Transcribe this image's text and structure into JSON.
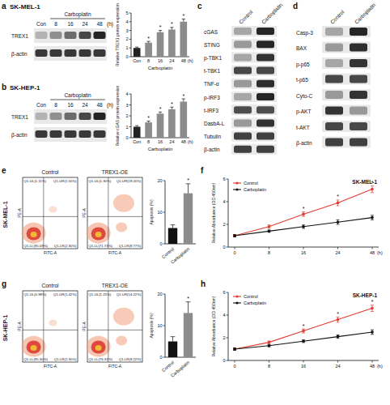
{
  "panel_labels": [
    "a",
    "b",
    "c",
    "d",
    "e",
    "f",
    "g",
    "h"
  ],
  "blots": [
    {
      "title": "SK-MEL-1",
      "group_label": "Carboplatin",
      "lanes": [
        "Con",
        "8",
        "16",
        "24",
        "48"
      ],
      "lane_unit": "(h)",
      "rows": [
        "TREX1",
        "β-actin"
      ]
    },
    {
      "title": "SK-HEP-1",
      "group_label": "Carboplatin",
      "lanes": [
        "Con",
        "8",
        "16",
        "24",
        "48"
      ],
      "lane_unit": "(h)",
      "rows": [
        "TREX1",
        "β-actin"
      ]
    },
    {
      "lanes": [
        "Control",
        "Carboplatin"
      ],
      "rows": [
        "cGAS",
        "STING",
        "p-TBK1",
        "t-TBK1",
        "TNF-α",
        "p-IRF3",
        "t-IRF3",
        "DasbA-L",
        "Tubulin",
        "β-actin"
      ]
    },
    {
      "lanes": [
        "Control",
        "Carboplatin"
      ],
      "rows": [
        "Casp-3",
        "BAX",
        "p-p65",
        "t-p65",
        "Cyto-C",
        "p-AKT",
        "t-AKT",
        "β-actin"
      ]
    }
  ],
  "flow": [
    {
      "row_label": "SK-MEL-1",
      "x_label": "FITC-A",
      "y_label": "PE-A",
      "plots": [
        {
          "title": "Control",
          "quadrants": [
            "Q1-UL(1.11%)",
            "Q1-UR(1.50%)",
            "Q1-LL(95.09%)",
            "Q1-LR(2.30%)"
          ]
        },
        {
          "title": "TREX1-OE",
          "quadrants": [
            "Q1-UL(1.30%)",
            "Q1-UR(18.20%)",
            "Q1-LL(71.73%)",
            "Q1-LR(8.77%)"
          ]
        }
      ]
    },
    {
      "row_label": "SK-HEP-1",
      "x_label": "FITC-A",
      "y_label": "PE-A",
      "plots": [
        {
          "title": "Control",
          "quadrants": [
            "Q1-UL(0.98%)",
            "Q1-UR(1.42%)",
            "Q1-LL(95.30%)",
            "Q1-LR(2.30%)"
          ]
        },
        {
          "title": "TREX1-OE",
          "quadrants": [
            "Q1-UL(1.25%)",
            "Q1-UR(14.22%)",
            "Q1-LL(76.31%)",
            "Q1-LR(8.22%)"
          ]
        }
      ]
    }
  ],
  "chart_data": [
    {
      "type": "bar",
      "y_label": "Relative TREX1 protein expression",
      "x_label": "Carboplatin",
      "annotations": [
        "(h)"
      ],
      "categories": [
        "Con",
        "8",
        "16",
        "24",
        "48"
      ],
      "values": [
        1,
        1.6,
        2.8,
        3.1,
        4
      ],
      "errors": [
        0.1,
        0.15,
        0.2,
        0.25,
        0.3
      ],
      "significance": [
        null,
        "*",
        "*",
        "*",
        "*"
      ],
      "colors": [
        "#222222",
        "#8c8c8c",
        "#8c8c8c",
        "#8c8c8c",
        "#8c8c8c"
      ],
      "ylim": [
        0,
        5
      ],
      "yticks": [
        0,
        1,
        2,
        3,
        4,
        5
      ],
      "grid": false
    },
    {
      "type": "bar",
      "y_label": "Relative cGAS protein expression",
      "x_label": "Carboplatin",
      "annotations": [
        "(h)"
      ],
      "categories": [
        "Con",
        "8",
        "16",
        "24",
        "48"
      ],
      "values": [
        1,
        1.4,
        2.2,
        2.6,
        3.3
      ],
      "errors": [
        0.1,
        0.12,
        0.15,
        0.2,
        0.25
      ],
      "significance": [
        null,
        "*",
        "*",
        "*",
        "*"
      ],
      "colors": [
        "#222222",
        "#8c8c8c",
        "#8c8c8c",
        "#8c8c8c",
        "#8c8c8c"
      ],
      "ylim": [
        0,
        4
      ],
      "yticks": [
        0,
        1,
        2,
        3,
        4
      ],
      "grid": false
    },
    {
      "type": "bar",
      "y_label": "Apoptosis (%)",
      "categories": [
        "Control",
        "Carboplatin"
      ],
      "values": [
        5,
        16
      ],
      "errors": [
        1,
        3
      ],
      "significance": [
        null,
        "*"
      ],
      "colors": [
        "#111111",
        "#8c8c8c"
      ],
      "ylim": [
        0,
        20
      ],
      "yticks": [
        0,
        10,
        20
      ],
      "grid": false
    },
    {
      "type": "line",
      "title": "SK-MEL-1",
      "y_label": "Relative Absorbance (OD 450nm)",
      "x_label": "(h)",
      "categories": [
        "0",
        "8",
        "16",
        "24",
        "48"
      ],
      "legend": "top-left",
      "grid": false,
      "series": [
        {
          "name": "Control",
          "color": "#e23b30",
          "marker": "circle",
          "values": [
            1,
            1.8,
            2.9,
            3.9,
            5.1
          ],
          "errors": [
            0.1,
            0.15,
            0.2,
            0.25,
            0.3
          ]
        },
        {
          "name": "Carboplatin",
          "color": "#111111",
          "marker": "circle",
          "values": [
            1,
            1.4,
            1.8,
            2.2,
            2.6
          ],
          "errors": [
            0.1,
            0.1,
            0.15,
            0.2,
            0.2
          ]
        }
      ],
      "significance": [
        null,
        null,
        "*",
        "*",
        "*"
      ],
      "ylim": [
        0,
        6
      ],
      "yticks": [
        0,
        2,
        4,
        6
      ]
    },
    {
      "type": "bar",
      "y_label": "Apoptosis (%)",
      "categories": [
        "Control",
        "Carboplatin"
      ],
      "values": [
        5,
        14
      ],
      "errors": [
        1.5,
        3.5
      ],
      "significance": [
        null,
        "*"
      ],
      "colors": [
        "#111111",
        "#8c8c8c"
      ],
      "ylim": [
        0,
        20
      ],
      "yticks": [
        0,
        10,
        20
      ],
      "grid": false
    },
    {
      "type": "line",
      "title": "SK-HEP-1",
      "y_label": "Relative Absorbance (OD 450nm)",
      "x_label": "(h)",
      "categories": [
        "0",
        "8",
        "16",
        "24",
        "48"
      ],
      "legend": "top-left",
      "grid": false,
      "series": [
        {
          "name": "Control",
          "color": "#e23b30",
          "marker": "circle",
          "values": [
            1,
            1.6,
            2.6,
            3.6,
            4.6
          ],
          "errors": [
            0.1,
            0.12,
            0.18,
            0.22,
            0.28
          ]
        },
        {
          "name": "Carboplatin",
          "color": "#111111",
          "marker": "circle",
          "values": [
            1,
            1.3,
            1.7,
            2.1,
            2.5
          ],
          "errors": [
            0.1,
            0.1,
            0.12,
            0.15,
            0.2
          ]
        }
      ],
      "significance": [
        null,
        null,
        "*",
        "*",
        "*"
      ],
      "ylim": [
        0,
        6
      ],
      "yticks": [
        0,
        2,
        4,
        6
      ]
    }
  ]
}
